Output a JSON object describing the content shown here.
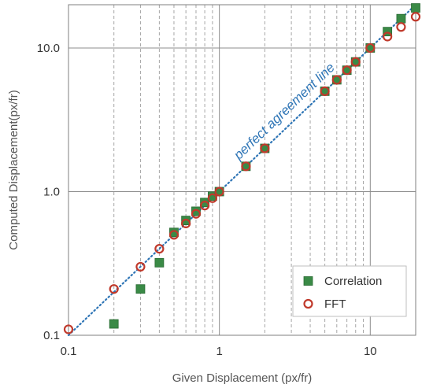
{
  "chart_data": {
    "type": "scatter",
    "title": "",
    "xlabel": "Given Displacement (px/fr)",
    "ylabel": "Computed Displacement(px/fr)",
    "xscale": "log",
    "yscale": "log",
    "xlim": [
      0.1,
      20
    ],
    "ylim": [
      0.1,
      20
    ],
    "x_tick_labels": [
      {
        "value": 0.1,
        "label": "0.1"
      },
      {
        "value": 1,
        "label": "1"
      },
      {
        "value": 10,
        "label": "10"
      }
    ],
    "y_tick_labels": [
      {
        "value": 0.1,
        "label": "0.1"
      },
      {
        "value": 1,
        "label": "1.0"
      },
      {
        "value": 10,
        "label": "10.0"
      }
    ],
    "major_grid": true,
    "minor_x_grid": "dashed",
    "legend_position": "bottom-right",
    "annotation": {
      "text": "perfect agreement line",
      "color": "#2e75b6"
    },
    "reference_line": {
      "x": [
        0.1,
        20
      ],
      "y": [
        0.1,
        20
      ],
      "style": "dotted",
      "color": "#2e75b6"
    },
    "series": [
      {
        "name": "Correlation",
        "marker": "square",
        "color": "#3a8a46",
        "points": [
          {
            "x": 0.2,
            "y": 0.12
          },
          {
            "x": 0.3,
            "y": 0.21
          },
          {
            "x": 0.4,
            "y": 0.32
          },
          {
            "x": 0.5,
            "y": 0.52
          },
          {
            "x": 0.6,
            "y": 0.63
          },
          {
            "x": 0.7,
            "y": 0.73
          },
          {
            "x": 0.8,
            "y": 0.84
          },
          {
            "x": 0.9,
            "y": 0.93
          },
          {
            "x": 1.0,
            "y": 1.0
          },
          {
            "x": 1.5,
            "y": 1.5
          },
          {
            "x": 2.0,
            "y": 2.0
          },
          {
            "x": 5.0,
            "y": 5.0
          },
          {
            "x": 6.0,
            "y": 6.0
          },
          {
            "x": 7.0,
            "y": 7.0
          },
          {
            "x": 8.0,
            "y": 8.0
          },
          {
            "x": 10.0,
            "y": 10.0
          },
          {
            "x": 13.0,
            "y": 13.0
          },
          {
            "x": 16.0,
            "y": 16.0
          },
          {
            "x": 20.0,
            "y": 19.0
          }
        ]
      },
      {
        "name": "FFT",
        "marker": "circle",
        "color": "#c0392b",
        "points": [
          {
            "x": 0.1,
            "y": 0.11
          },
          {
            "x": 0.2,
            "y": 0.21
          },
          {
            "x": 0.3,
            "y": 0.3
          },
          {
            "x": 0.4,
            "y": 0.4
          },
          {
            "x": 0.5,
            "y": 0.5
          },
          {
            "x": 0.6,
            "y": 0.6
          },
          {
            "x": 0.7,
            "y": 0.7
          },
          {
            "x": 0.8,
            "y": 0.8
          },
          {
            "x": 0.9,
            "y": 0.9
          },
          {
            "x": 1.0,
            "y": 1.0
          },
          {
            "x": 1.5,
            "y": 1.5
          },
          {
            "x": 2.0,
            "y": 2.0
          },
          {
            "x": 5.0,
            "y": 5.0
          },
          {
            "x": 6.0,
            "y": 6.0
          },
          {
            "x": 7.0,
            "y": 7.0
          },
          {
            "x": 8.0,
            "y": 8.0
          },
          {
            "x": 10.0,
            "y": 10.0
          },
          {
            "x": 13.0,
            "y": 12.0
          },
          {
            "x": 16.0,
            "y": 14.0
          },
          {
            "x": 20.0,
            "y": 16.5
          }
        ]
      }
    ]
  }
}
